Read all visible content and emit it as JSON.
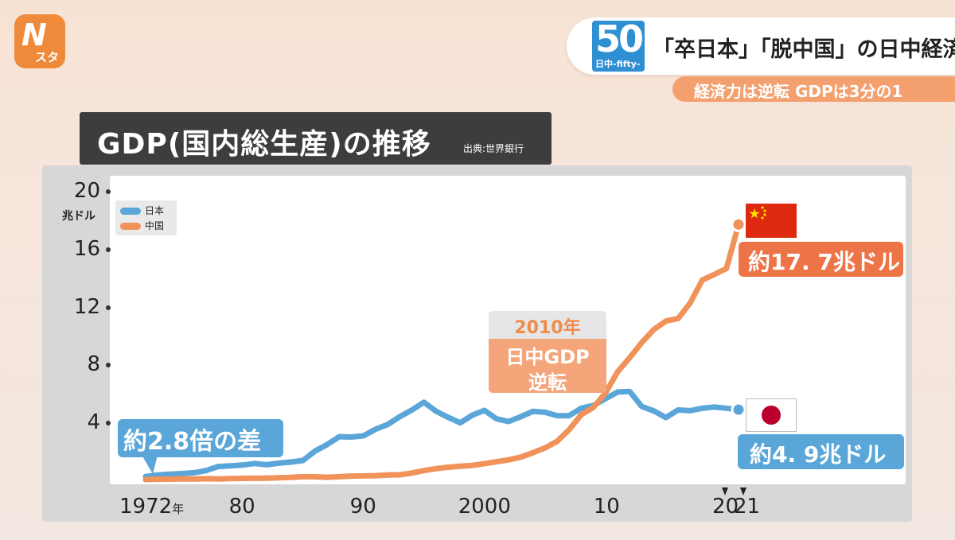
{
  "header": {
    "logo_main": "N",
    "logo_sub": "スタ",
    "badge_number": "50",
    "badge_sub": "日中-fifty-",
    "banner_title": "「卒日本」「脱中国」の日中経済",
    "sub_banner": "経済力は逆転 GDPは3分の1"
  },
  "chart_header": {
    "title": "GDP(国内総生産)の推移",
    "source": "出典:世界銀行"
  },
  "annotations": {
    "gap_1972": "約2.8倍の差",
    "year_2010": "2010年",
    "reversal_line1": "日中GDP",
    "reversal_line2": "逆転",
    "china_2021": "約17. 7兆ドル",
    "japan_2021": "約4. 9兆ドル"
  },
  "colors": {
    "japan": "#5aa6d8",
    "china": "#f0925a"
  },
  "chart_data": {
    "type": "line",
    "title": "GDP(国内総生産)の推移",
    "ylabel": "兆ドル",
    "ylim": [
      0,
      20
    ],
    "xlim": [
      1972,
      2021
    ],
    "yticks": [
      "4",
      "8",
      "12",
      "16",
      "20"
    ],
    "xticks": [
      {
        "value": 1972,
        "label": "1972年"
      },
      {
        "value": 1980,
        "label": "80"
      },
      {
        "value": 1990,
        "label": "90"
      },
      {
        "value": 2000,
        "label": "2000"
      },
      {
        "value": 2010,
        "label": "10"
      },
      {
        "value": 2020,
        "label": "20"
      },
      {
        "value": 2021,
        "label": "21"
      }
    ],
    "legend": [
      "日本",
      "中国"
    ],
    "legend_position": "top-left",
    "grid": false,
    "series": [
      {
        "name": "日本",
        "x": [
          1972,
          1973,
          1974,
          1975,
          1976,
          1977,
          1978,
          1979,
          1980,
          1981,
          1982,
          1983,
          1984,
          1985,
          1986,
          1987,
          1988,
          1989,
          1990,
          1991,
          1992,
          1993,
          1994,
          1995,
          1996,
          1997,
          1998,
          1999,
          2000,
          2001,
          2002,
          2003,
          2004,
          2005,
          2006,
          2007,
          2008,
          2009,
          2010,
          2011,
          2012,
          2013,
          2014,
          2015,
          2016,
          2017,
          2018,
          2019,
          2020,
          2021
        ],
        "values": [
          0.32,
          0.43,
          0.48,
          0.52,
          0.58,
          0.73,
          1.01,
          1.06,
          1.11,
          1.22,
          1.13,
          1.24,
          1.32,
          1.43,
          2.08,
          2.53,
          3.07,
          3.05,
          3.13,
          3.58,
          3.91,
          4.45,
          4.91,
          5.45,
          4.83,
          4.41,
          4.03,
          4.56,
          4.89,
          4.3,
          4.12,
          4.45,
          4.82,
          4.76,
          4.53,
          4.52,
          5.04,
          5.23,
          5.7,
          6.16,
          6.2,
          5.16,
          4.85,
          4.39,
          4.92,
          4.87,
          5.04,
          5.12,
          5.04,
          4.94
        ]
      },
      {
        "name": "中国",
        "x": [
          1972,
          1973,
          1974,
          1975,
          1976,
          1977,
          1978,
          1979,
          1980,
          1981,
          1982,
          1983,
          1984,
          1985,
          1986,
          1987,
          1988,
          1989,
          1990,
          1991,
          1992,
          1993,
          1994,
          1995,
          1996,
          1997,
          1998,
          1999,
          2000,
          2001,
          2002,
          2003,
          2004,
          2005,
          2006,
          2007,
          2008,
          2009,
          2010,
          2011,
          2012,
          2013,
          2014,
          2015,
          2016,
          2017,
          2018,
          2019,
          2020,
          2021
        ],
        "values": [
          0.11,
          0.14,
          0.14,
          0.16,
          0.15,
          0.17,
          0.15,
          0.18,
          0.19,
          0.2,
          0.21,
          0.23,
          0.26,
          0.31,
          0.3,
          0.27,
          0.31,
          0.35,
          0.36,
          0.38,
          0.43,
          0.44,
          0.56,
          0.73,
          0.86,
          0.96,
          1.03,
          1.09,
          1.21,
          1.34,
          1.47,
          1.66,
          1.96,
          2.29,
          2.75,
          3.55,
          4.59,
          5.1,
          6.09,
          7.55,
          8.53,
          9.57,
          10.48,
          11.06,
          11.23,
          12.31,
          13.89,
          14.28,
          14.69,
          17.73
        ]
      }
    ]
  }
}
